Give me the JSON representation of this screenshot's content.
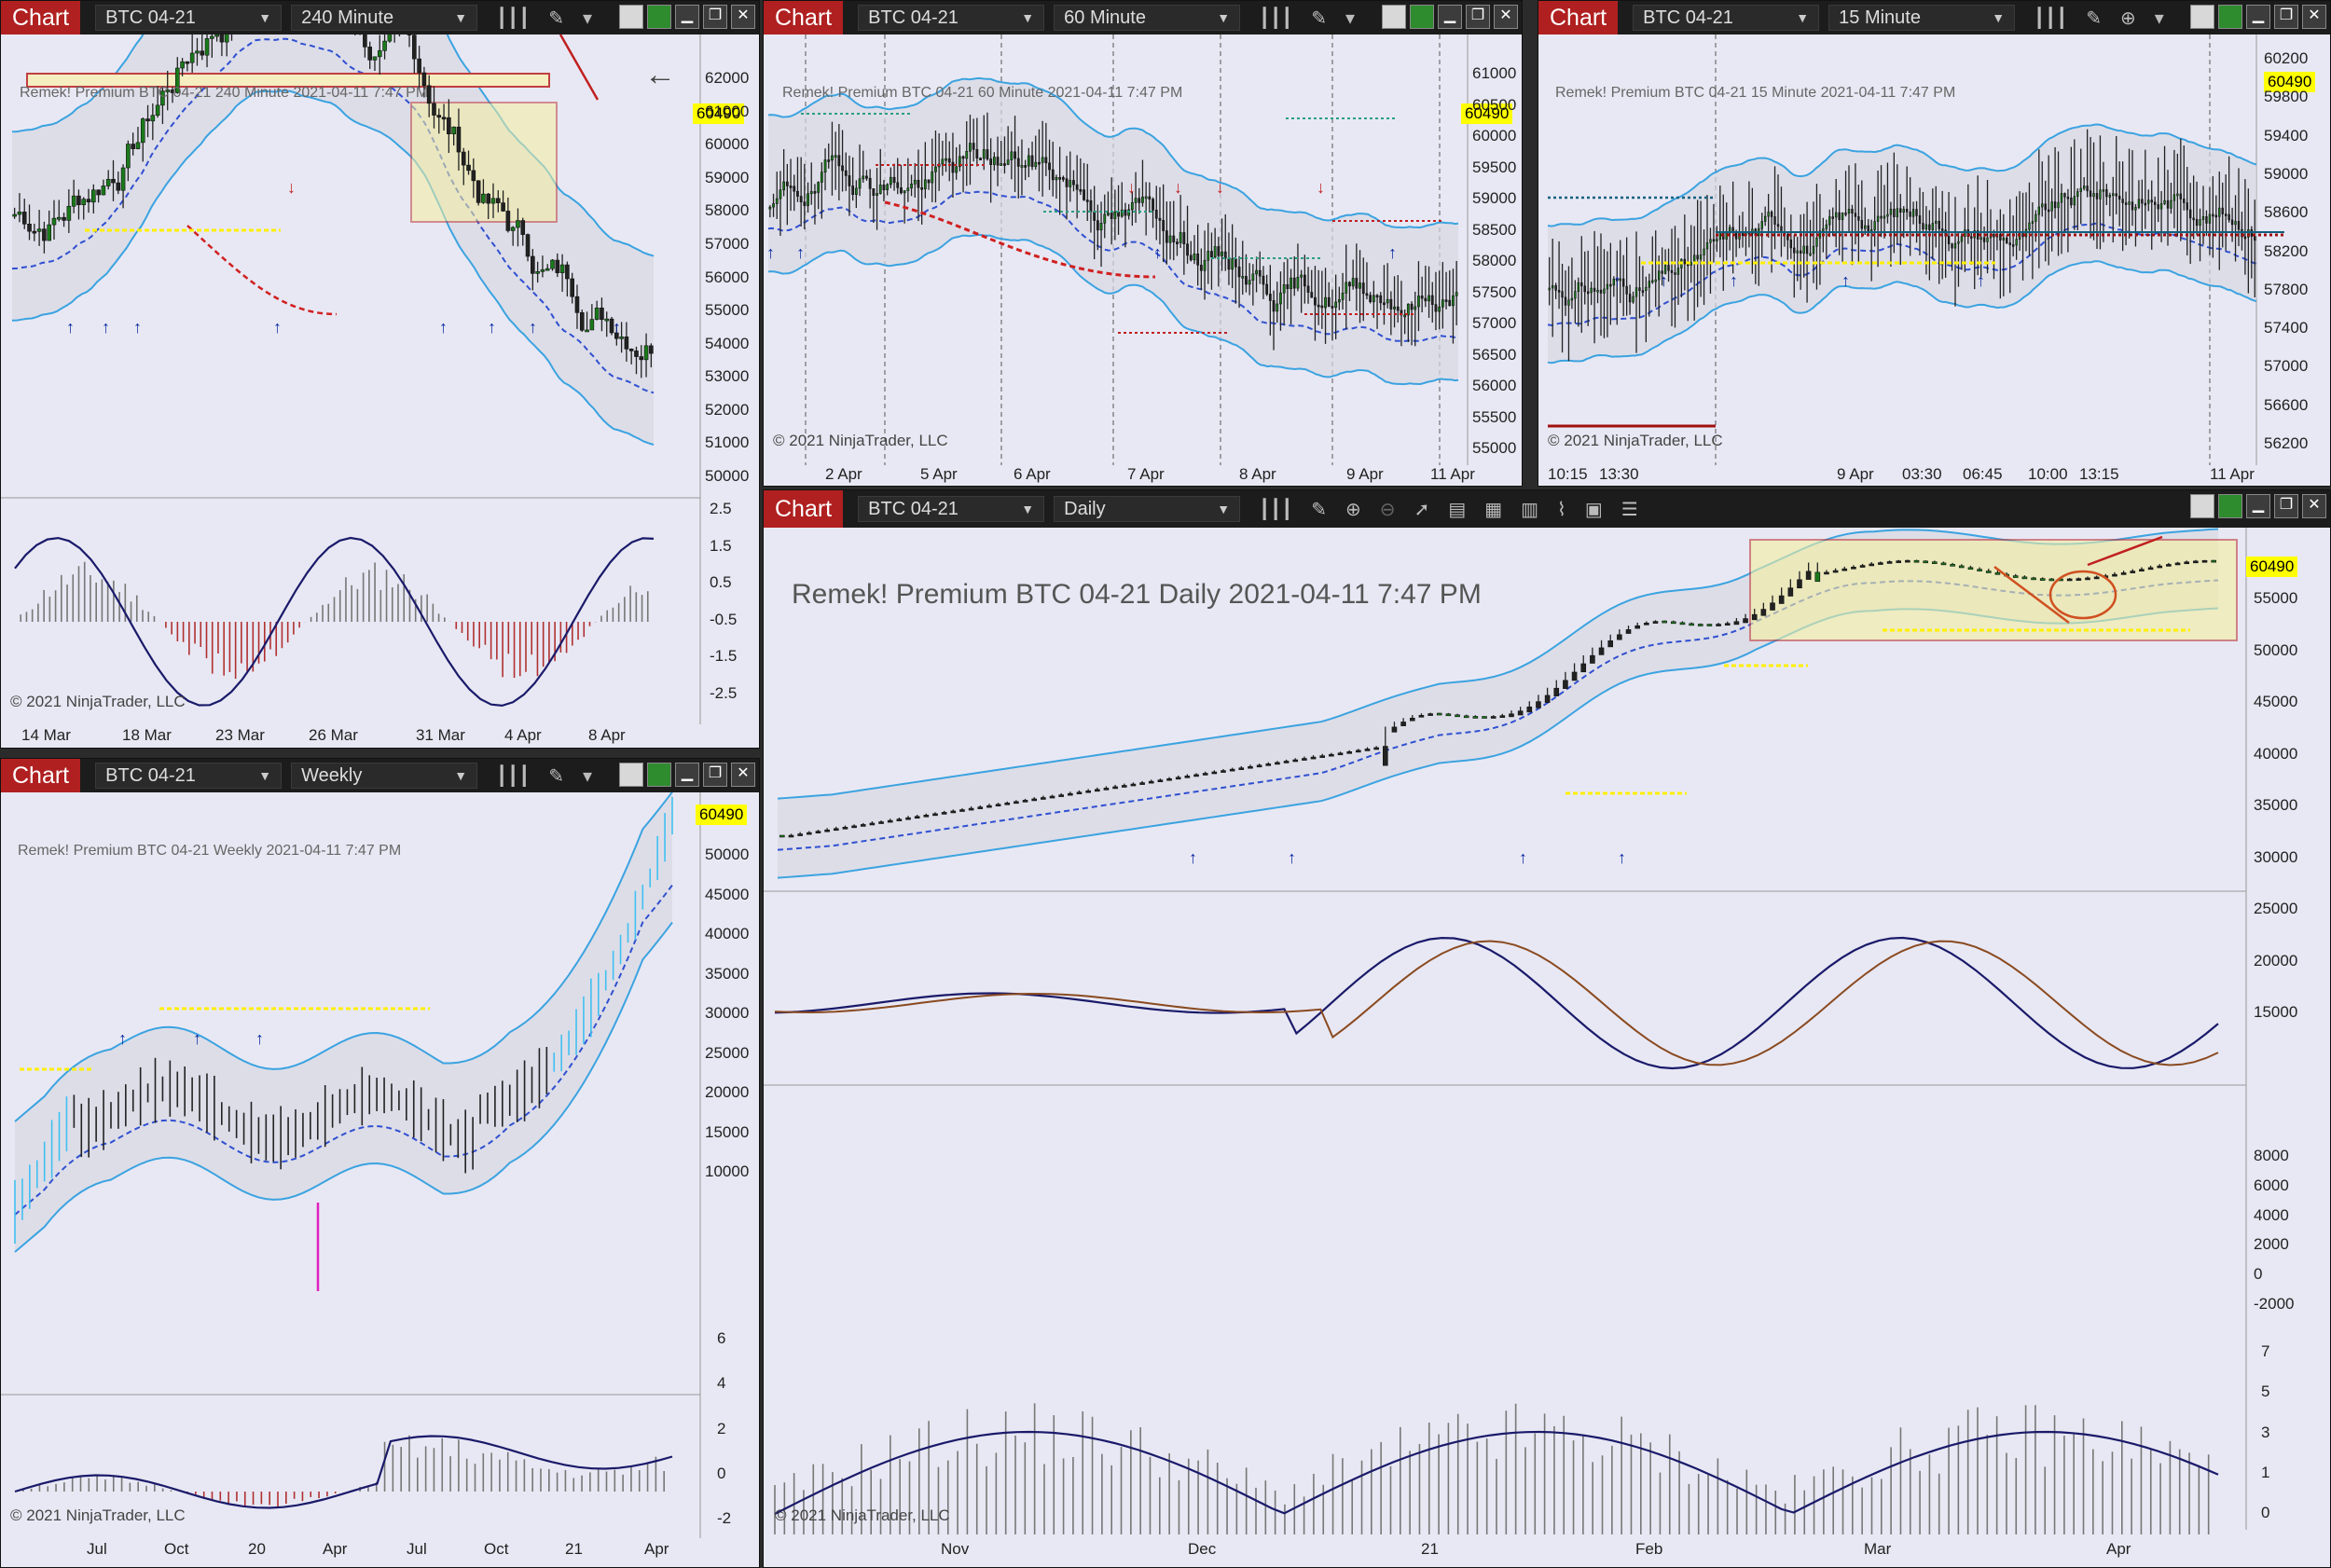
{
  "common": {
    "app_button": "Chart",
    "instrument": "BTC 04-21",
    "watermark_name": "Remek!  Premium",
    "timestamp": "2021-04-11 7:47 PM",
    "copyright": "© 2021 NinjaTrader, LLC",
    "last_price": "60490"
  },
  "colors": {
    "up_candle": "#1a7a1a",
    "down_candle": "#222222",
    "band": "#3ba3e0",
    "highlight": "#f5f0a0",
    "title_red": "#b02020",
    "price_label": "#ffff00"
  },
  "panels": {
    "p240": {
      "interval": "240 Minute",
      "y_ticks": [
        "62000",
        "61000",
        "60000",
        "59000",
        "58000",
        "57000",
        "56000",
        "55000",
        "54000",
        "53000",
        "52000",
        "51000",
        "50000"
      ],
      "osc_ticks": [
        "2.5",
        "1.5",
        "0.5",
        "-0.5",
        "-1.5",
        "-2.5"
      ],
      "x_ticks": [
        "14 Mar",
        "18 Mar",
        "23 Mar",
        "26 Mar",
        "31 Mar",
        "4 Apr",
        "8 Apr"
      ],
      "icons": [
        "bar-chart-icon",
        "pencil-icon",
        "chevron-down-icon"
      ]
    },
    "p60": {
      "interval": "60 Minute",
      "y_ticks": [
        "61000",
        "60500",
        "60000",
        "59500",
        "59000",
        "58500",
        "58000",
        "57500",
        "57000",
        "56500",
        "56000",
        "55500",
        "55000"
      ],
      "x_ticks": [
        "2 Apr",
        "5 Apr",
        "6 Apr",
        "7 Apr",
        "8 Apr",
        "9 Apr",
        "11 Apr"
      ],
      "icons": [
        "bar-chart-icon",
        "pencil-icon",
        "chevron-down-icon"
      ]
    },
    "p15": {
      "interval": "15 Minute",
      "y_ticks": [
        "60200",
        "59800",
        "59400",
        "59000",
        "58600",
        "58200",
        "57800",
        "57400",
        "57000",
        "56600",
        "56200"
      ],
      "x_ticks": [
        "10:15",
        "13:30",
        "9 Apr",
        "03:30",
        "06:45",
        "10:00",
        "13:15",
        "11 Apr"
      ],
      "icons": [
        "bar-chart-icon",
        "pencil-icon",
        "zoom-icon",
        "chevron-down-icon"
      ]
    },
    "pweekly": {
      "interval": "Weekly",
      "y_ticks": [
        "50000",
        "45000",
        "40000",
        "35000",
        "30000",
        "25000",
        "20000",
        "15000",
        "10000"
      ],
      "osc_ticks": [
        "6",
        "4",
        "2",
        "0",
        "-2"
      ],
      "x_ticks": [
        "Jul",
        "Oct",
        "20",
        "Apr",
        "Jul",
        "Oct",
        "21",
        "Apr"
      ],
      "icons": [
        "bar-chart-icon",
        "pencil-icon",
        "chevron-down-icon"
      ]
    },
    "pdaily": {
      "interval": "Daily",
      "y_ticks": [
        "55000",
        "50000",
        "45000",
        "40000",
        "35000",
        "30000",
        "25000",
        "20000",
        "15000"
      ],
      "osc1_ticks": [
        "8000",
        "6000",
        "4000",
        "2000",
        "0",
        "-2000"
      ],
      "osc2_ticks": [
        "7",
        "5",
        "3",
        "1",
        "0"
      ],
      "x_ticks": [
        "Nov",
        "Dec",
        "21",
        "Feb",
        "Mar",
        "Apr"
      ],
      "icons": [
        "bar-chart-icon",
        "pencil-icon",
        "zoom-in-icon",
        "zoom-out-icon",
        "pointer-icon",
        "data-box-icon",
        "properties-icon",
        "indicators-icon",
        "strategies-icon",
        "list-icon"
      ]
    }
  },
  "window_controls": {
    "minimize": "▁",
    "restore": "❐",
    "close": "✕"
  }
}
